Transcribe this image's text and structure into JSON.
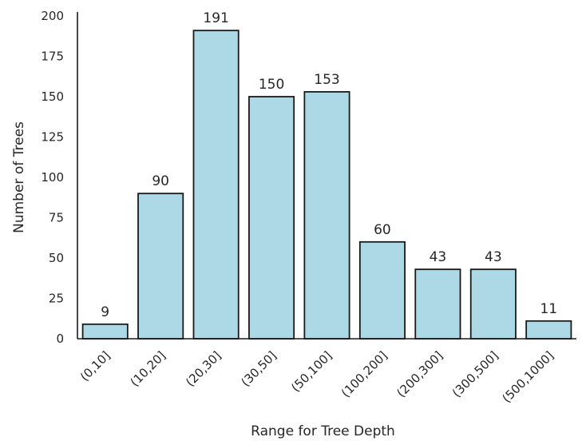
{
  "chart_data": {
    "type": "bar",
    "title": "",
    "xlabel": "Range for Tree Depth",
    "ylabel": "Number of Trees",
    "categories": [
      "(0,10]",
      "(10,20]",
      "(20,30]",
      "(30,50]",
      "(50,100]",
      "(100,200]",
      "(200,300]",
      "(300,500]",
      "(500,1000]"
    ],
    "values": [
      9,
      90,
      191,
      150,
      153,
      60,
      43,
      43,
      11
    ],
    "data_labels": [
      "9",
      "90",
      "191",
      "150",
      "153",
      "60",
      "43",
      "43",
      "11"
    ],
    "ylim": [
      0,
      200
    ],
    "yticks": [
      0,
      25,
      50,
      75,
      100,
      125,
      150,
      175,
      200
    ],
    "ytick_labels": [
      "0",
      "25",
      "50",
      "75",
      "100",
      "125",
      "150",
      "175",
      "200"
    ],
    "grid": false,
    "legend": "none",
    "bar_color": "#add8e6",
    "edge_color": "#1a1a1a"
  }
}
